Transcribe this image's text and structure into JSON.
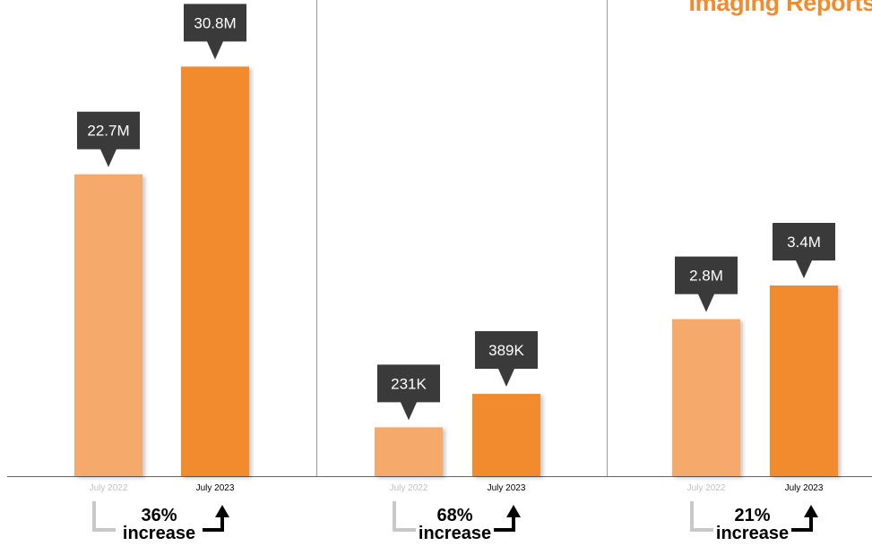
{
  "title": "Imaging Reports",
  "colors": {
    "july_2022": "#f5a96a",
    "july_2023": "#f28a2e",
    "callout": "#3a3a3a",
    "divider": "#999999",
    "baseline": "#666666",
    "arrow_old": "#c8c8c8",
    "arrow_new": "#000000",
    "tick_old": "#c0c0c0",
    "tick_new": "#000000"
  },
  "chart_data": [
    {
      "type": "bar",
      "categories": [
        "July 2022",
        "July 2023"
      ],
      "values": [
        22.7,
        30.8
      ],
      "value_labels": [
        "22.7M",
        "30.8M"
      ],
      "units": "millions",
      "ylim": [
        0,
        35
      ],
      "change_value": "36%",
      "change_word": "increase"
    },
    {
      "type": "bar",
      "categories": [
        "July 2022",
        "July 2023"
      ],
      "values": [
        0.231,
        0.389
      ],
      "value_labels": [
        "231K",
        "389K"
      ],
      "units": "millions",
      "ylim": [
        0,
        2.2
      ],
      "change_value": "68%",
      "change_word": "increase"
    },
    {
      "type": "bar",
      "categories": [
        "July 2022",
        "July 2023"
      ],
      "values": [
        2.8,
        3.4
      ],
      "value_labels": [
        "2.8M",
        "3.4M"
      ],
      "units": "millions",
      "ylim": [
        0,
        8.3
      ],
      "change_value": "21%",
      "change_word": "increase"
    }
  ]
}
